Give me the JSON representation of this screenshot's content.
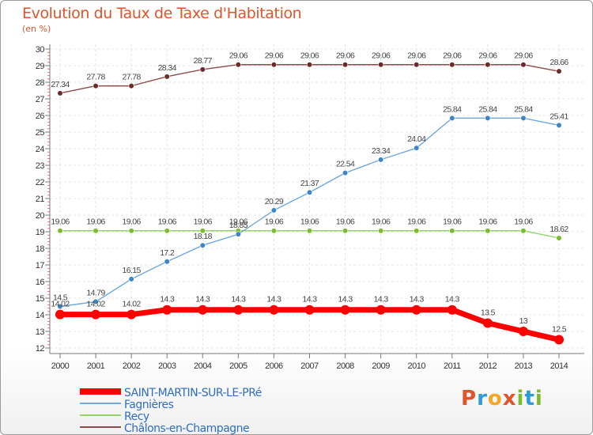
{
  "header": {
    "title": "Evolution du Taux de Taxe d'Habitation",
    "unit": "(en %)"
  },
  "logo": {
    "text": "Proxiti",
    "colors": [
      "#e0532b",
      "#2f9ad8",
      "#f5a623",
      "#e0532b",
      "#7dbb2e",
      "#2f9ad8",
      "#7dbb2e"
    ]
  },
  "chart_data": {
    "type": "line",
    "x": [
      "2000",
      "2001",
      "2002",
      "2003",
      "2004",
      "2005",
      "2006",
      "2007",
      "2008",
      "2009",
      "2010",
      "2011",
      "2012",
      "2013",
      "2014"
    ],
    "ylim": [
      12,
      30
    ],
    "yticks": [
      12,
      13,
      14,
      15,
      16,
      17,
      18,
      19,
      20,
      21,
      22,
      23,
      24,
      25,
      26,
      27,
      28,
      29,
      30
    ],
    "grid": true,
    "legend_position": "bottom-left",
    "series": [
      {
        "name": "SAINT-MARTIN-SUR-LE-PRé",
        "color": "#ff0000",
        "values": [
          14.02,
          14.02,
          14.02,
          14.3,
          14.3,
          14.3,
          14.3,
          14.3,
          14.3,
          14.3,
          14.3,
          14.3,
          13.5,
          13,
          12.5
        ],
        "labels": [
          "14.02",
          "14.02",
          "14.02",
          "14.3",
          "14.3",
          "14.3",
          "14.3",
          "14.3",
          "14.3",
          "14.3",
          "14.3",
          "14.3",
          "13.5",
          "13",
          "12.5"
        ]
      },
      {
        "name": "Fagnières",
        "color": "#6fa8dc",
        "marker": "#3d85c6",
        "values": [
          14.5,
          14.79,
          16.15,
          17.2,
          18.18,
          18.85,
          20.29,
          21.37,
          22.54,
          23.34,
          24.04,
          25.84,
          25.84,
          25.84,
          25.41
        ],
        "labels": [
          "14.5",
          "14.79",
          "16.15",
          "17.2",
          "18.18",
          "18.85",
          "20.29",
          "21.37",
          "22.54",
          "23.34",
          "24.04",
          "25.84",
          "25.84",
          "25.84",
          "25.41"
        ]
      },
      {
        "name": "Recy",
        "color": "#93d46a",
        "marker": "#7dbb2e",
        "values": [
          19.06,
          19.06,
          19.06,
          19.06,
          19.06,
          19.06,
          19.06,
          19.06,
          19.06,
          19.06,
          19.06,
          19.06,
          19.06,
          19.06,
          18.62
        ],
        "labels": [
          "19.06",
          "19.06",
          "19.06",
          "19.06",
          "19.06",
          "19.06",
          "19.06",
          "19.06",
          "19.06",
          "19.06",
          "19.06",
          "19.06",
          "19.06",
          "19.06",
          "18.62"
        ]
      },
      {
        "name": "Châlons-en-Champagne",
        "color": "#8e4a4a",
        "marker": "#6b2b2b",
        "values": [
          27.34,
          27.78,
          27.78,
          28.34,
          28.77,
          29.06,
          29.06,
          29.06,
          29.06,
          29.06,
          29.06,
          29.06,
          29.06,
          29.06,
          28.66
        ],
        "labels": [
          "27.34",
          "27.78",
          "27.78",
          "28.34",
          "28.77",
          "29.06",
          "29.06",
          "29.06",
          "29.06",
          "29.06",
          "29.06",
          "29.06",
          "29.06",
          "29.06",
          "28.66"
        ]
      }
    ]
  }
}
